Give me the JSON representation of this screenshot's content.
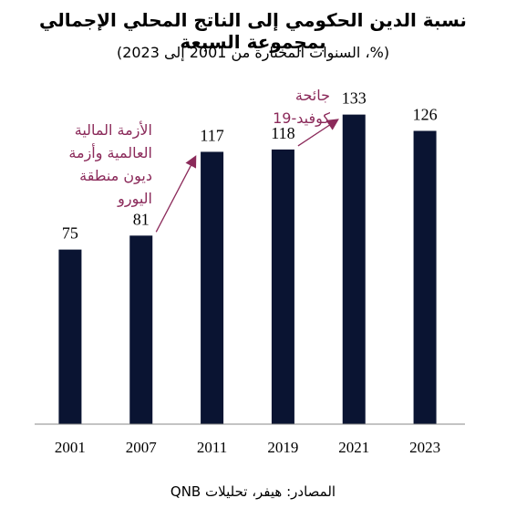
{
  "chart_data": {
    "type": "bar",
    "title": "نسبة الدين الحكومي إلى الناتج المحلي الإجمالي بمجموعة السبعة",
    "subtitle": "(%، السنوات المختارة من 2001 إلى 2023)",
    "categories": [
      "2001",
      "2007",
      "2011",
      "2019",
      "2021",
      "2023"
    ],
    "values": [
      75,
      81,
      117,
      118,
      133,
      126
    ],
    "ylim": [
      0,
      145
    ],
    "grid": false,
    "bar_color": "#0a1432",
    "annotations": [
      {
        "text_lines": [
          "الأزمة المالية",
          "العالمية وأزمة",
          "ديون منطقة",
          "اليورو"
        ],
        "from_category": "2007",
        "to_category": "2011"
      },
      {
        "text_lines": [
          "جائحة",
          "كوفيد-19"
        ],
        "from_category": "2019",
        "to_category": "2021"
      }
    ],
    "annotation_color": "#8b2a5a"
  },
  "source": "المصادر: هيفر، تحليلات QNB"
}
